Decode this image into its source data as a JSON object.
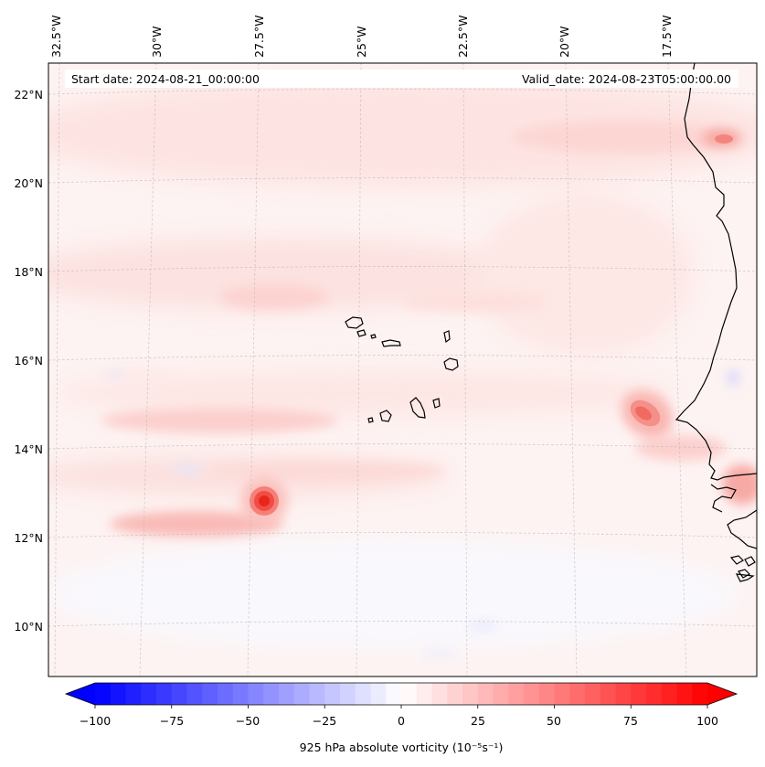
{
  "header": {
    "start_date": "Start date: 2024-08-21_00:00:00",
    "valid_date": "Valid_date: 2024-08-23T05:00:00.00"
  },
  "top_lon_labels": [
    "32.5°W",
    "30°W",
    "27.5°W",
    "25°W",
    "22.5°W",
    "20°W",
    "17.5°W"
  ],
  "left_lat_labels": [
    "22°N",
    "20°N",
    "18°N",
    "16°N",
    "14°N",
    "12°N",
    "10°N"
  ],
  "colorbar": {
    "ticks": [
      "−100",
      "−75",
      "−50",
      "−25",
      "0",
      "25",
      "50",
      "75",
      "100"
    ],
    "tick_values": [
      -100,
      -75,
      -50,
      -25,
      0,
      25,
      50,
      75,
      100
    ],
    "label": "925 hPa absolute vorticity (10⁻⁵s⁻¹)",
    "min": -100,
    "max": 100,
    "n_bins": 40,
    "low_color": "#0000ff",
    "mid_color": "#ffffff",
    "high_color": "#ff0000"
  },
  "features": {
    "vortex_west": {
      "lon": -27.4,
      "lat": 12.9,
      "vorticity": 70
    },
    "vortex_east": {
      "lon": -18.6,
      "lat": 14.6,
      "vorticity": 45
    },
    "vortex_coast": {
      "lon": -16.9,
      "lat": 20.9,
      "vorticity": 30
    }
  }
}
